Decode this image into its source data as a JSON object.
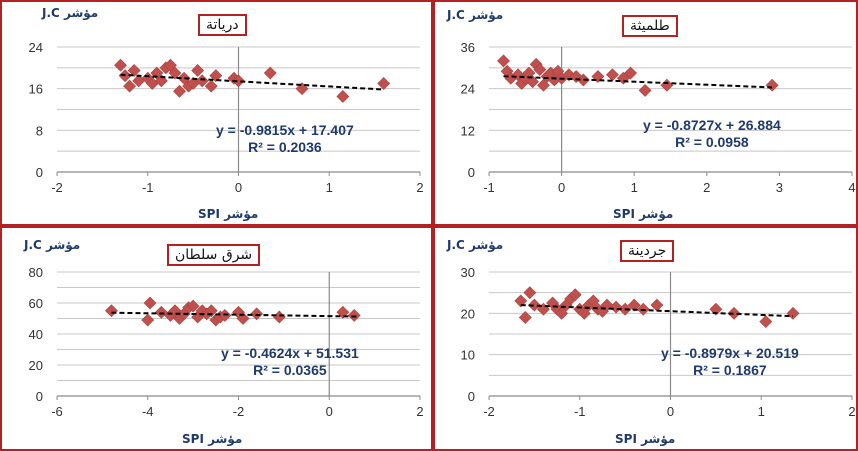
{
  "chart_data": [
    {
      "type": "scatter",
      "title": "درياتة",
      "ylabel": "مؤشر J.C",
      "xlabel": "مؤشر SPI",
      "xlim": [
        -2,
        2
      ],
      "ylim": [
        0,
        24
      ],
      "xticks": [
        -2,
        -1,
        0,
        1,
        2
      ],
      "yticks": [
        0,
        8,
        16,
        24
      ],
      "grid": "horizontal",
      "equation": "y = -0.9815x + 17.407",
      "r2": "R² = 0.2036",
      "trend": {
        "slope": -0.9815,
        "intercept": 17.407,
        "x_from": -1.3,
        "x_to": 1.6
      },
      "points": [
        [
          -1.3,
          20.5
        ],
        [
          -1.25,
          18.5
        ],
        [
          -1.2,
          16.5
        ],
        [
          -1.15,
          19.5
        ],
        [
          -1.1,
          17.5
        ],
        [
          -1.0,
          18.0
        ],
        [
          -0.95,
          17.0
        ],
        [
          -0.9,
          19.0
        ],
        [
          -0.85,
          17.5
        ],
        [
          -0.8,
          20.0
        ],
        [
          -0.75,
          20.5
        ],
        [
          -0.7,
          19.0
        ],
        [
          -0.65,
          15.5
        ],
        [
          -0.6,
          18.0
        ],
        [
          -0.55,
          16.5
        ],
        [
          -0.5,
          17.0
        ],
        [
          -0.45,
          19.5
        ],
        [
          -0.4,
          17.5
        ],
        [
          -0.3,
          16.5
        ],
        [
          -0.25,
          18.5
        ],
        [
          -0.05,
          18.0
        ],
        [
          0.0,
          17.5
        ],
        [
          0.35,
          19.0
        ],
        [
          0.7,
          16.0
        ],
        [
          1.15,
          14.5
        ],
        [
          1.6,
          17.0
        ]
      ]
    },
    {
      "type": "scatter",
      "title": "طلميثة",
      "ylabel": "مؤشر J.C",
      "xlabel": "مؤشر SPI",
      "xlim": [
        -1,
        4
      ],
      "ylim": [
        0,
        36
      ],
      "xticks": [
        -1,
        0,
        1,
        2,
        3,
        4
      ],
      "yticks": [
        0,
        12,
        24,
        36
      ],
      "grid": "horizontal",
      "equation": "y = -0.8727x + 26.884",
      "r2": "R² = 0.0958",
      "trend": {
        "slope": -0.8727,
        "intercept": 26.884,
        "x_from": -0.8,
        "x_to": 2.9
      },
      "points": [
        [
          -0.8,
          32.0
        ],
        [
          -0.75,
          29.0
        ],
        [
          -0.7,
          27.0
        ],
        [
          -0.6,
          28.0
        ],
        [
          -0.55,
          25.5
        ],
        [
          -0.5,
          27.0
        ],
        [
          -0.45,
          28.5
        ],
        [
          -0.4,
          26.0
        ],
        [
          -0.35,
          31.0
        ],
        [
          -0.3,
          29.5
        ],
        [
          -0.25,
          25.0
        ],
        [
          -0.2,
          27.5
        ],
        [
          -0.15,
          28.5
        ],
        [
          -0.1,
          26.5
        ],
        [
          -0.05,
          29.0
        ],
        [
          0.0,
          27.0
        ],
        [
          0.1,
          28.0
        ],
        [
          0.2,
          27.5
        ],
        [
          0.3,
          26.5
        ],
        [
          0.5,
          27.5
        ],
        [
          0.7,
          28.0
        ],
        [
          0.85,
          27.0
        ],
        [
          0.95,
          28.5
        ],
        [
          1.15,
          23.5
        ],
        [
          1.45,
          25.0
        ],
        [
          2.9,
          25.0
        ]
      ]
    },
    {
      "type": "scatter",
      "title": "شرق سلطان",
      "ylabel": "مؤشر J.C",
      "xlabel": "مؤشر SPI",
      "xlim": [
        -6,
        2
      ],
      "ylim": [
        0,
        80
      ],
      "xticks": [
        -6,
        -4,
        -2,
        0,
        2
      ],
      "yticks": [
        0,
        20,
        40,
        60,
        80
      ],
      "grid": "horizontal",
      "equation": "y = -0.4624x + 51.531",
      "r2": "R² = 0.0365",
      "trend": {
        "slope": -0.4624,
        "intercept": 51.531,
        "x_from": -4.8,
        "x_to": 0.6
      },
      "points": [
        [
          -4.8,
          55.0
        ],
        [
          -4.0,
          49.0
        ],
        [
          -3.95,
          60.0
        ],
        [
          -3.7,
          54.0
        ],
        [
          -3.5,
          52.0
        ],
        [
          -3.4,
          55.0
        ],
        [
          -3.3,
          50.0
        ],
        [
          -3.2,
          53.0
        ],
        [
          -3.1,
          57.0
        ],
        [
          -3.0,
          58.0
        ],
        [
          -2.9,
          51.0
        ],
        [
          -2.8,
          55.0
        ],
        [
          -2.7,
          53.0
        ],
        [
          -2.6,
          55.0
        ],
        [
          -2.5,
          49.0
        ],
        [
          -2.4,
          51.0
        ],
        [
          -2.3,
          52.0
        ],
        [
          -2.0,
          54.0
        ],
        [
          -1.9,
          50.0
        ],
        [
          -1.6,
          53.0
        ],
        [
          -1.1,
          51.0
        ],
        [
          0.3,
          54.0
        ],
        [
          0.55,
          52.0
        ]
      ]
    },
    {
      "type": "scatter",
      "title": "جردينة",
      "ylabel": "مؤشر J.C",
      "xlabel": "مؤشر SPI",
      "xlim": [
        -2,
        2
      ],
      "ylim": [
        0,
        30
      ],
      "xticks": [
        -2,
        -1,
        0,
        1,
        2
      ],
      "yticks": [
        0,
        10,
        20,
        30
      ],
      "grid": "horizontal",
      "equation": "y = -0.8979x + 20.519",
      "r2": "R² = 0.1867",
      "trend": {
        "slope": -0.8979,
        "intercept": 20.519,
        "x_from": -1.65,
        "x_to": 1.35
      },
      "points": [
        [
          -1.65,
          23.0
        ],
        [
          -1.6,
          19.0
        ],
        [
          -1.55,
          25.0
        ],
        [
          -1.5,
          22.0
        ],
        [
          -1.4,
          21.0
        ],
        [
          -1.3,
          22.5
        ],
        [
          -1.25,
          21.0
        ],
        [
          -1.2,
          20.0
        ],
        [
          -1.15,
          22.0
        ],
        [
          -1.1,
          23.5
        ],
        [
          -1.05,
          24.5
        ],
        [
          -1.0,
          21.0
        ],
        [
          -0.95,
          20.0
        ],
        [
          -0.9,
          22.0
        ],
        [
          -0.85,
          23.0
        ],
        [
          -0.8,
          21.0
        ],
        [
          -0.75,
          20.5
        ],
        [
          -0.7,
          22.0
        ],
        [
          -0.6,
          21.5
        ],
        [
          -0.5,
          21.0
        ],
        [
          -0.4,
          22.0
        ],
        [
          -0.3,
          21.0
        ],
        [
          -0.15,
          22.0
        ],
        [
          0.5,
          21.0
        ],
        [
          0.7,
          20.0
        ],
        [
          1.05,
          18.0
        ],
        [
          1.35,
          20.0
        ]
      ]
    }
  ]
}
